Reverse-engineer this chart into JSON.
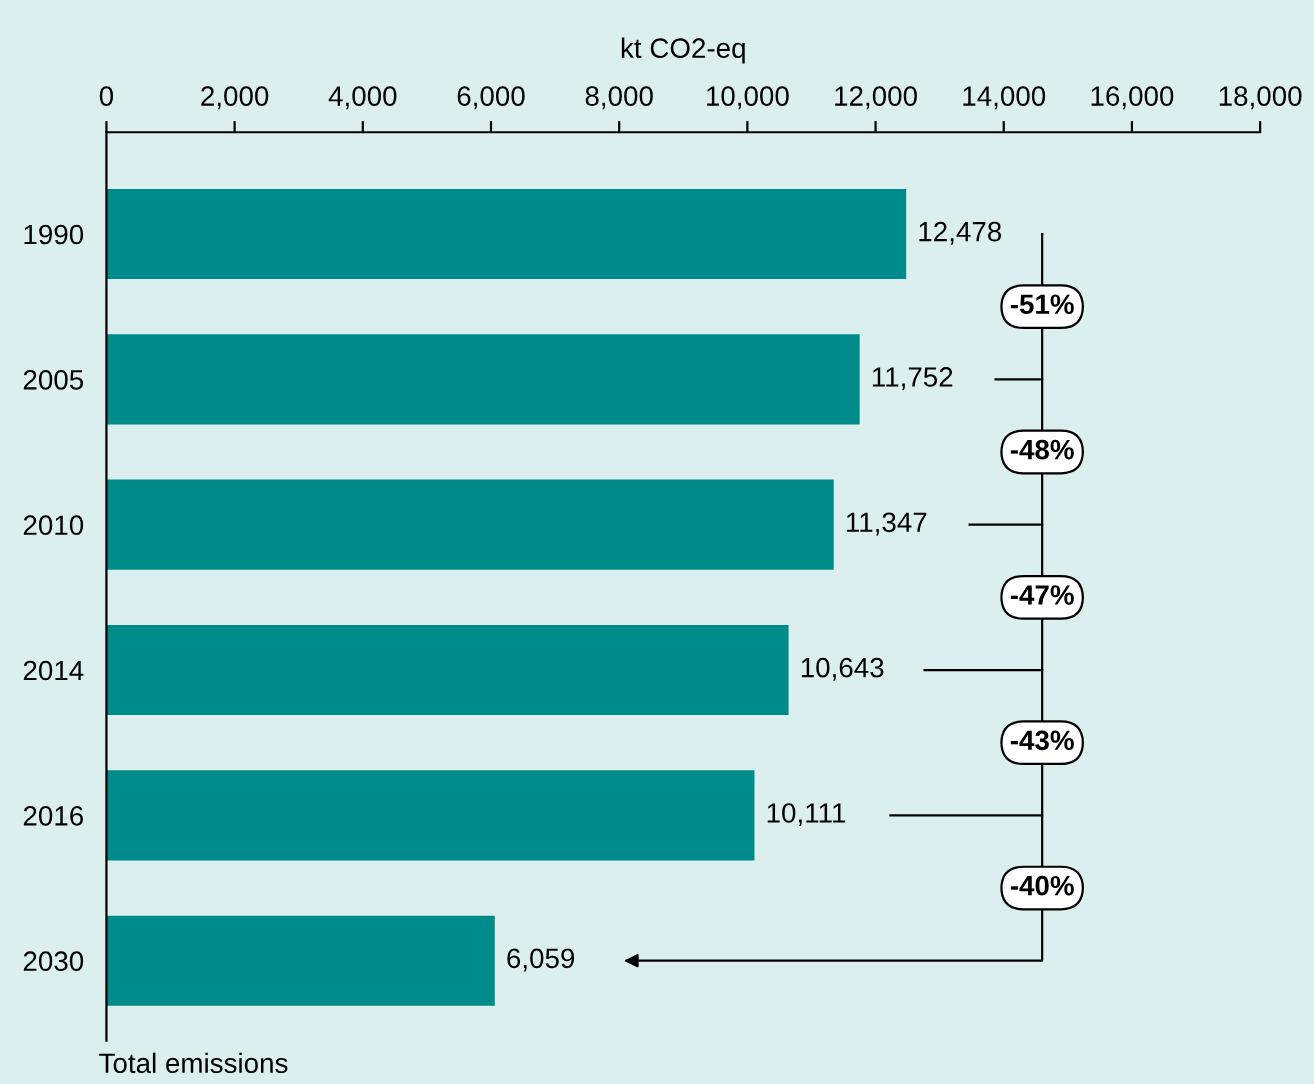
{
  "chart_data": {
    "type": "bar",
    "orientation": "horizontal",
    "xlabel": "kt CO2-eq",
    "categories": [
      "1990",
      "2005",
      "2010",
      "2014",
      "2016",
      "2030"
    ],
    "values": [
      12478,
      11752,
      11347,
      10643,
      10111,
      6059
    ],
    "value_labels": [
      "12,478",
      "11,752",
      "11,347",
      "10,643",
      "10,111",
      "6,059"
    ],
    "color": "#008b8b",
    "xlim": [
      0,
      18000
    ],
    "xticks": [
      0,
      {
        "value": 2000,
        "label": "2,000"
      },
      {
        "value": 4000,
        "label": "4,000"
      },
      {
        "value": 6000,
        "label": "6,000"
      },
      {
        "value": 8000,
        "label": "8,000"
      },
      {
        "value": 10000,
        "label": "10,000"
      },
      {
        "value": 12000,
        "label": "12,000"
      },
      {
        "value": 14000,
        "label": "14,000"
      },
      {
        "value": 16000,
        "label": "16,000"
      },
      {
        "value": 18000,
        "label": "18,000"
      }
    ],
    "annotations": [
      "-51%",
      "-48%",
      "-47%",
      "-43%",
      "-40%",
      "Total emissions"
    ],
    "grid": false,
    "legend": false
  }
}
